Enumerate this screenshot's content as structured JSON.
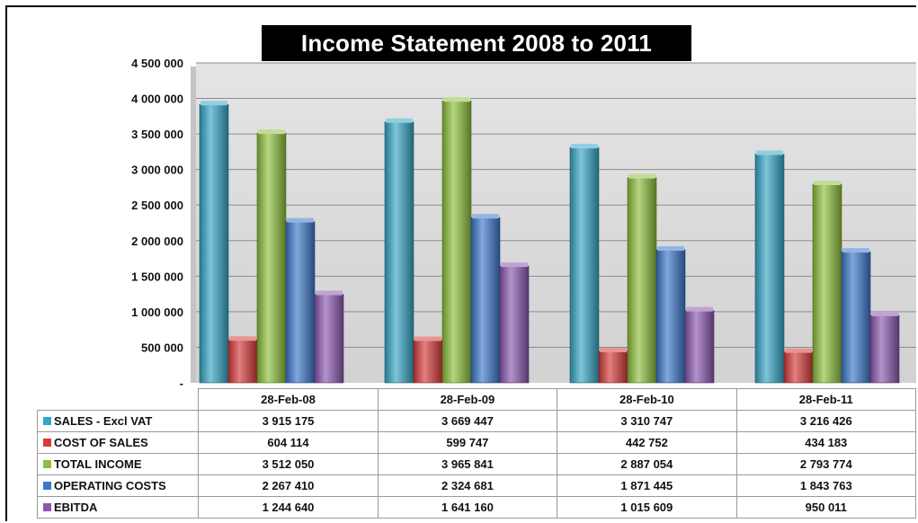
{
  "chart_data": {
    "type": "bar",
    "title": "Income Statement 2008 to 2011",
    "categories": [
      "28-Feb-08",
      "28-Feb-09",
      "28-Feb-10",
      "28-Feb-11"
    ],
    "series": [
      {
        "name": "SALES - Excl VAT",
        "color": "#36a6c6",
        "values": [
          3915175,
          3669447,
          3310747,
          3216426
        ],
        "labels": [
          "3 915 175",
          "3 669 447",
          "3 310 747",
          "3 216 426"
        ]
      },
      {
        "name": "COST OF SALES",
        "color": "#d83a3a",
        "values": [
          604114,
          599747,
          442752,
          434183
        ],
        "labels": [
          "604 114",
          "599 747",
          "442 752",
          "434 183"
        ]
      },
      {
        "name": "TOTAL INCOME",
        "color": "#8ec03c",
        "values": [
          3512050,
          3965841,
          2887054,
          2793774
        ],
        "labels": [
          "3 512 050",
          "3 965 841",
          "2 887 054",
          "2 793 774"
        ]
      },
      {
        "name": "OPERATING COSTS",
        "color": "#3b78cc",
        "values": [
          2267410,
          2324681,
          1871445,
          1843763
        ],
        "labels": [
          "2 267 410",
          "2 324 681",
          "1 871 445",
          "1 843 763"
        ]
      },
      {
        "name": "EBITDA",
        "color": "#8d58b0",
        "values": [
          1244640,
          1641160,
          1015609,
          950011
        ],
        "labels": [
          "1 244 640",
          "1 641 160",
          "1 015 609",
          "950 011"
        ]
      }
    ],
    "ylim": [
      0,
      4500000
    ],
    "yticks": [
      {
        "value": 0,
        "label": "-"
      },
      {
        "value": 500000,
        "label": "500 000"
      },
      {
        "value": 1000000,
        "label": "1 000 000"
      },
      {
        "value": 1500000,
        "label": "1 500 000"
      },
      {
        "value": 2000000,
        "label": "2 000 000"
      },
      {
        "value": 2500000,
        "label": "2 500 000"
      },
      {
        "value": 3000000,
        "label": "3 000 000"
      },
      {
        "value": 3500000,
        "label": "3 500 000"
      },
      {
        "value": 4000000,
        "label": "4 000 000"
      },
      {
        "value": 4500000,
        "label": "4 500 000"
      }
    ],
    "grid": true,
    "legend": "data table below chart"
  }
}
